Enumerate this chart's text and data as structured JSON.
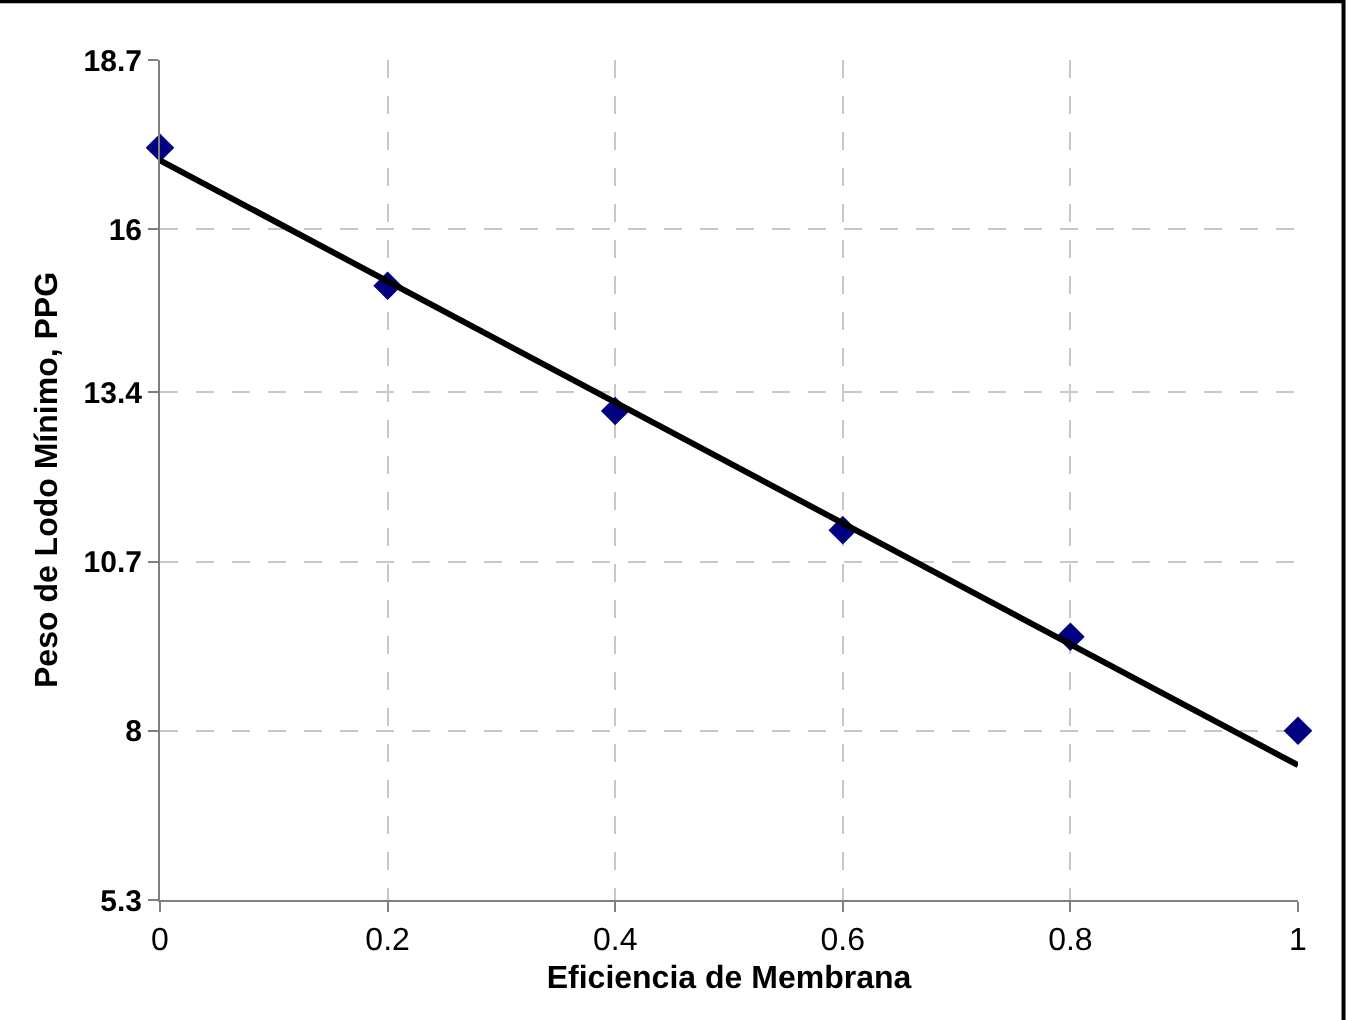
{
  "chart_data": {
    "type": "scatter",
    "xlabel": "Eficiencia de Membrana",
    "ylabel": "Peso de Lodo Mínimo, PPG",
    "x": [
      0,
      0.2,
      0.4,
      0.6,
      0.8,
      1
    ],
    "series": [
      {
        "color": "#000080",
        "marker": "diamond",
        "values": [
          17.3,
          15.1,
          13.1,
          11.2,
          9.5,
          8.0
        ]
      },
      {
        "type": "line",
        "color": "#000000",
        "marker": "none",
        "line_style": "solid",
        "x": [
          0,
          1
        ],
        "values": [
          17.1,
          7.45
        ]
      }
    ],
    "xlim": [
      0,
      1
    ],
    "xticks": [
      0,
      0.2,
      0.4,
      0.6,
      0.8,
      1
    ],
    "ylim": [
      5.3,
      18.7
    ],
    "yticks": [
      5.3,
      8,
      10.7,
      13.4,
      16,
      18.7
    ],
    "grid": true
  }
}
